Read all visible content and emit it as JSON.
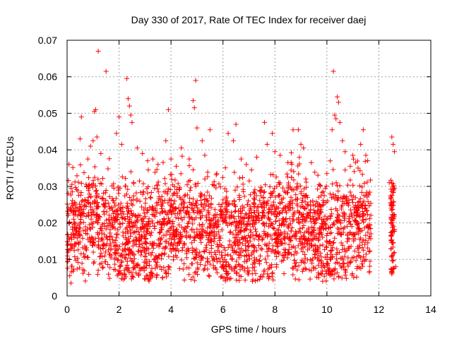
{
  "chart_data": {
    "type": "scatter",
    "title": "Day 330 of 2017, Rate Of TEC Index for receiver daej",
    "xlabel": "GPS time / hours",
    "ylabel": "ROTI / TECUs",
    "xlim": [
      0,
      14
    ],
    "ylim": [
      0,
      0.07
    ],
    "x_ticks": [
      0,
      2,
      4,
      6,
      8,
      10,
      12,
      14
    ],
    "y_ticks": [
      0,
      0.01,
      0.02,
      0.03,
      0.04,
      0.05,
      0.06,
      0.07
    ],
    "x_tick_labels": [
      "0",
      "2",
      "4",
      "6",
      "8",
      "10",
      "12",
      "14"
    ],
    "y_tick_labels": [
      "0",
      "0.01",
      "0.02",
      "0.03",
      "0.04",
      "0.05",
      "0.06",
      "0.07"
    ],
    "grid": true,
    "marker": "+",
    "marker_color": "#ff0000",
    "series": [
      {
        "points": [
          [
            0.05,
            0.0316
          ],
          [
            0.1,
            0.0055
          ],
          [
            0.15,
            0.0035
          ],
          [
            0.2,
            0.0285
          ],
          [
            0.25,
            0.021
          ],
          [
            0.5,
            0.043
          ],
          [
            0.55,
            0.049
          ],
          [
            0.6,
            0.022
          ],
          [
            0.8,
            0.0375
          ],
          [
            0.9,
            0.041
          ],
          [
            1.0,
            0.0425
          ],
          [
            1.05,
            0.0505
          ],
          [
            1.1,
            0.051
          ],
          [
            1.15,
            0.0435
          ],
          [
            1.2,
            0.067
          ],
          [
            1.3,
            0.039
          ],
          [
            1.5,
            0.0615
          ],
          [
            1.7,
            0.011
          ],
          [
            1.8,
            0.0295
          ],
          [
            1.9,
            0.0445
          ],
          [
            2.0,
            0.049
          ],
          [
            2.1,
            0.0415
          ],
          [
            2.3,
            0.0595
          ],
          [
            2.35,
            0.054
          ],
          [
            2.4,
            0.052
          ],
          [
            2.45,
            0.0495
          ],
          [
            2.5,
            0.0475
          ],
          [
            2.7,
            0.0405
          ],
          [
            2.9,
            0.039
          ],
          [
            3.1,
            0.037
          ],
          [
            3.3,
            0.0375
          ],
          [
            3.5,
            0.036
          ],
          [
            3.8,
            0.0425
          ],
          [
            3.9,
            0.051
          ],
          [
            4.0,
            0.0375
          ],
          [
            4.2,
            0.0355
          ],
          [
            4.4,
            0.0405
          ],
          [
            4.7,
            0.0375
          ],
          [
            4.85,
            0.0535
          ],
          [
            4.9,
            0.0515
          ],
          [
            4.95,
            0.059
          ],
          [
            5.0,
            0.046
          ],
          [
            5.2,
            0.0425
          ],
          [
            5.3,
            0.0385
          ],
          [
            5.5,
            0.0455
          ],
          [
            5.6,
            0.0305
          ],
          [
            6.2,
            0.0445
          ],
          [
            6.4,
            0.0425
          ],
          [
            6.5,
            0.047
          ],
          [
            6.7,
            0.0375
          ],
          [
            6.9,
            0.036
          ],
          [
            7.1,
            0.0345
          ],
          [
            7.3,
            0.038
          ],
          [
            7.6,
            0.0475
          ],
          [
            7.7,
            0.0415
          ],
          [
            7.9,
            0.0445
          ],
          [
            8.0,
            0.0395
          ],
          [
            8.2,
            0.0385
          ],
          [
            8.5,
            0.0365
          ],
          [
            8.7,
            0.0455
          ],
          [
            8.9,
            0.0455
          ],
          [
            9.0,
            0.0415
          ],
          [
            9.1,
            0.0405
          ],
          [
            9.4,
            0.0365
          ],
          [
            9.7,
            0.0305
          ],
          [
            10.0,
            0.0335
          ],
          [
            10.2,
            0.0455
          ],
          [
            10.25,
            0.0615
          ],
          [
            10.3,
            0.0495
          ],
          [
            10.35,
            0.0485
          ],
          [
            10.4,
            0.0545
          ],
          [
            10.45,
            0.053
          ],
          [
            10.5,
            0.0475
          ],
          [
            10.6,
            0.0425
          ],
          [
            10.7,
            0.0395
          ],
          [
            10.9,
            0.0355
          ],
          [
            11.0,
            0.0385
          ],
          [
            11.1,
            0.0365
          ],
          [
            11.2,
            0.035
          ],
          [
            11.3,
            0.0415
          ],
          [
            11.4,
            0.0455
          ],
          [
            11.5,
            0.0385
          ],
          [
            11.6,
            0.028
          ],
          [
            11.65,
            0.0195
          ],
          [
            12.4,
            0.031
          ],
          [
            12.45,
            0.0255
          ],
          [
            12.5,
            0.0435
          ],
          [
            12.55,
            0.0415
          ],
          [
            12.6,
            0.0395
          ],
          [
            12.65,
            0.008
          ],
          [
            12.5,
            0.0065
          ],
          [
            12.55,
            0.0145
          ]
        ]
      }
    ]
  }
}
